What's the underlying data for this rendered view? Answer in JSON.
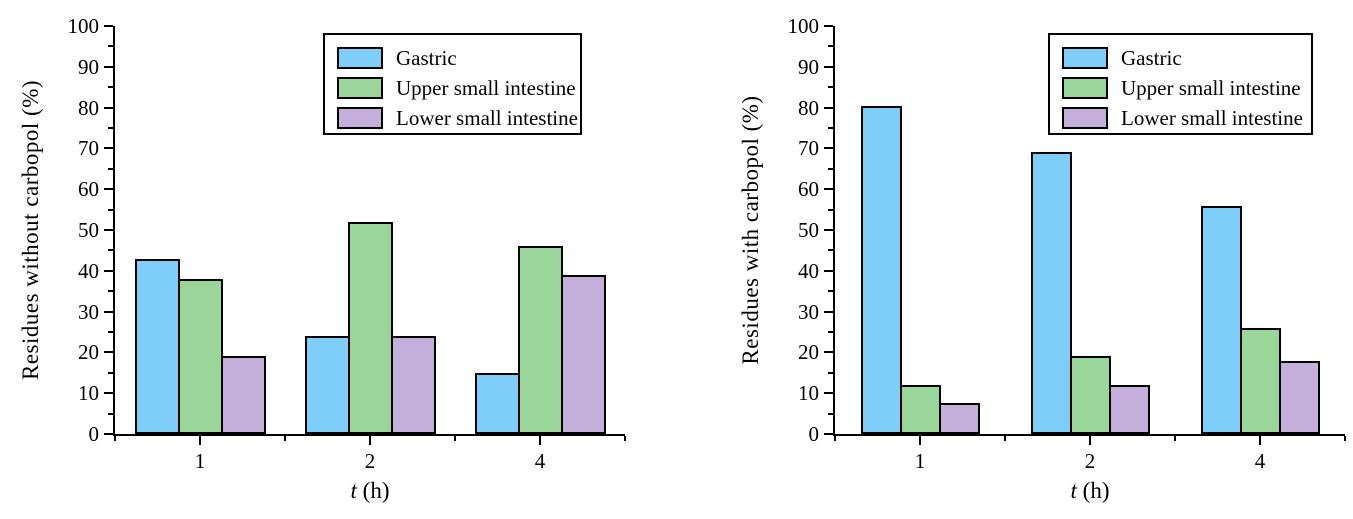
{
  "page": {
    "background": "#ffffff",
    "axis_color": "#000000"
  },
  "colors": {
    "gastric": "#7FCEFA",
    "upper_small_intestine": "#9AD599",
    "lower_small_intestine": "#C3AFD9",
    "bar_border": "#000000"
  },
  "legend_labels": [
    "Gastric",
    "Upper small intestine",
    "Lower small intestine"
  ],
  "chart_data": [
    {
      "type": "bar",
      "title": "",
      "ylabel": "Residues without carbopol (%)",
      "xlabel": "t (h)",
      "xlabel_t": "t",
      "xlabel_rest": " (h)",
      "categories": [
        "1",
        "2",
        "4"
      ],
      "ylim": [
        0,
        100
      ],
      "ytick_major_step": 10,
      "ytick_minor_step": 5,
      "grid": false,
      "legend_position": "top-right-inside",
      "series": [
        {
          "name": "Gastric",
          "color": "#7FCEFA",
          "values": [
            43,
            24,
            15
          ]
        },
        {
          "name": "Upper small intestine",
          "color": "#9AD599",
          "values": [
            38,
            52,
            46
          ]
        },
        {
          "name": "Lower small intestine",
          "color": "#C3AFD9",
          "values": [
            19,
            24,
            39
          ]
        }
      ]
    },
    {
      "type": "bar",
      "title": "",
      "ylabel": "Residues with carbopol (%)",
      "xlabel": "t (h)",
      "xlabel_t": "t",
      "xlabel_rest": " (h)",
      "categories": [
        "1",
        "2",
        "4"
      ],
      "ylim": [
        0,
        100
      ],
      "ytick_major_step": 10,
      "ytick_minor_step": 5,
      "grid": false,
      "legend_position": "top-right-inside",
      "series": [
        {
          "name": "Gastric",
          "color": "#7FCEFA",
          "values": [
            80.5,
            69,
            56
          ]
        },
        {
          "name": "Upper small intestine",
          "color": "#9AD599",
          "values": [
            12,
            19,
            26
          ]
        },
        {
          "name": "Lower small intestine",
          "color": "#C3AFD9",
          "values": [
            7.5,
            12,
            18
          ]
        }
      ]
    }
  ]
}
